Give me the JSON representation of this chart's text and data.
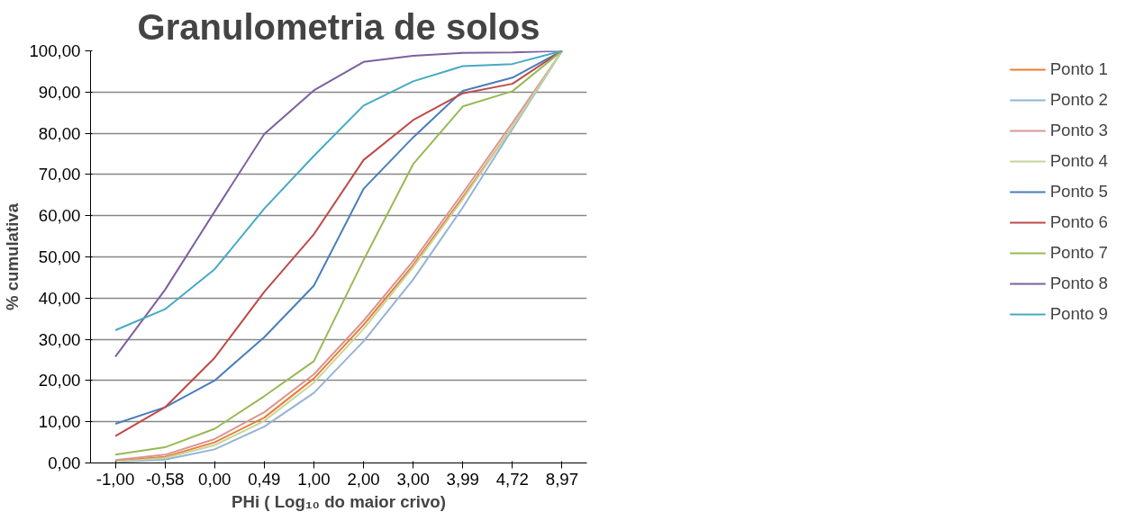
{
  "chart_data": {
    "type": "line",
    "title": "Granulometria de solos",
    "xlabel": "PHi ( Log₁₀ do maior crivo)",
    "ylabel": "% cumulativa",
    "categories": [
      "-1,00",
      "-0,58",
      "0,00",
      "0,49",
      "1,00",
      "2,00",
      "3,00",
      "3,99",
      "4,72",
      "8,97"
    ],
    "ylim": [
      0,
      100
    ],
    "yticks": [
      {
        "value": 0,
        "label": "0,00"
      },
      {
        "value": 10,
        "label": "10,00"
      },
      {
        "value": 20,
        "label": "20,00"
      },
      {
        "value": 30,
        "label": "30,00"
      },
      {
        "value": 40,
        "label": "40,00"
      },
      {
        "value": 50,
        "label": "50,00"
      },
      {
        "value": 60,
        "label": "60,00"
      },
      {
        "value": 70,
        "label": "70,00"
      },
      {
        "value": 80,
        "label": "80,00"
      },
      {
        "value": 90,
        "label": "90,00"
      },
      {
        "value": 100,
        "label": "100,00"
      }
    ],
    "grid": "y",
    "legend": "right",
    "marker": "none",
    "line_style": "solid",
    "series": [
      {
        "name": "Ponto 1",
        "color": "#ec7c30",
        "values": [
          0.5,
          1.5,
          5,
          11,
          20.5,
          33.5,
          48,
          64.5,
          81.5,
          100
        ]
      },
      {
        "name": "Ponto 2",
        "color": "#95b3d7",
        "values": [
          0.2,
          0.8,
          3.3,
          8.8,
          17,
          29.5,
          44.5,
          62,
          81,
          100
        ]
      },
      {
        "name": "Ponto 3",
        "color": "#d99694",
        "values": [
          0.7,
          2,
          5.8,
          12.3,
          21.5,
          34.5,
          49,
          65.5,
          82.5,
          100
        ]
      },
      {
        "name": "Ponto 4",
        "color": "#c3d69b",
        "values": [
          0.3,
          1.2,
          4.3,
          10.2,
          19.5,
          32.5,
          47.5,
          64,
          81.5,
          100
        ]
      },
      {
        "name": "Ponto 5",
        "color": "#4a7ebb",
        "values": [
          9.5,
          13.5,
          20,
          30.5,
          43,
          66.5,
          79,
          90.3,
          93.5,
          100
        ]
      },
      {
        "name": "Ponto 6",
        "color": "#be4b48",
        "values": [
          6.5,
          13.5,
          25.5,
          41.5,
          55.5,
          73.5,
          83.2,
          89.7,
          92,
          100
        ]
      },
      {
        "name": "Ponto 7",
        "color": "#98b954",
        "values": [
          2,
          3.8,
          8.3,
          16.2,
          24.7,
          49.2,
          72.5,
          86.5,
          90.2,
          100
        ]
      },
      {
        "name": "Ponto 8",
        "color": "#7d60a0",
        "values": [
          25.8,
          42,
          61,
          79.8,
          90.4,
          97.3,
          98.8,
          99.5,
          99.6,
          100
        ]
      },
      {
        "name": "Ponto 9",
        "color": "#46aac5",
        "values": [
          32.2,
          37.3,
          47,
          61.7,
          74.5,
          86.7,
          92.6,
          96.3,
          96.8,
          100
        ]
      }
    ]
  }
}
